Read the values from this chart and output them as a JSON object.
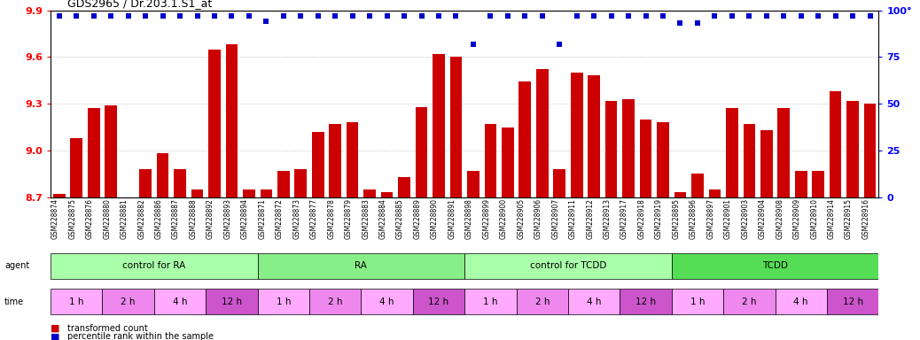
{
  "title": "GDS2965 / Dr.203.1.S1_at",
  "samples": [
    "GSM228874",
    "GSM228875",
    "GSM228876",
    "GSM228880",
    "GSM228881",
    "GSM228882",
    "GSM228886",
    "GSM228887",
    "GSM228888",
    "GSM228892",
    "GSM228893",
    "GSM228894",
    "GSM228871",
    "GSM228872",
    "GSM228873",
    "GSM228877",
    "GSM228878",
    "GSM228879",
    "GSM228883",
    "GSM228884",
    "GSM228885",
    "GSM228889",
    "GSM228890",
    "GSM228891",
    "GSM228898",
    "GSM228899",
    "GSM228900",
    "GSM228905",
    "GSM228906",
    "GSM228907",
    "GSM228911",
    "GSM228912",
    "GSM228913",
    "GSM228917",
    "GSM228918",
    "GSM228919",
    "GSM228895",
    "GSM228896",
    "GSM228897",
    "GSM228901",
    "GSM228903",
    "GSM228904",
    "GSM228908",
    "GSM228909",
    "GSM228910",
    "GSM228914",
    "GSM228915",
    "GSM228916"
  ],
  "bar_values": [
    8.72,
    9.08,
    9.27,
    9.29,
    8.7,
    8.88,
    8.98,
    8.88,
    8.75,
    9.65,
    9.68,
    8.75,
    8.75,
    8.87,
    8.88,
    9.12,
    9.17,
    9.18,
    8.75,
    8.73,
    8.83,
    9.28,
    9.62,
    9.6,
    8.87,
    9.17,
    9.15,
    9.44,
    9.52,
    8.88,
    9.5,
    9.48,
    9.32,
    9.33,
    9.2,
    9.18,
    8.73,
    8.85,
    8.75,
    9.27,
    9.17,
    9.13,
    9.27,
    8.87,
    8.87,
    9.38,
    9.32,
    9.3
  ],
  "percentile_values": [
    97,
    97,
    97,
    97,
    97,
    97,
    97,
    97,
    97,
    97,
    97,
    97,
    94,
    97,
    97,
    97,
    97,
    97,
    97,
    97,
    97,
    97,
    97,
    97,
    82,
    97,
    97,
    97,
    97,
    82,
    97,
    97,
    97,
    97,
    97,
    97,
    93,
    93,
    97,
    97,
    97,
    97,
    97,
    97,
    97,
    97,
    97,
    97
  ],
  "ylim_left": [
    8.7,
    9.9
  ],
  "yticks_left": [
    8.7,
    9.0,
    9.3,
    9.6,
    9.9
  ],
  "ylim_right": [
    0,
    100
  ],
  "yticks_right": [
    0,
    25,
    50,
    75,
    100
  ],
  "bar_color": "#cc0000",
  "dot_color": "#0000cc",
  "agents": [
    {
      "label": "control for RA",
      "start": 0,
      "end": 12,
      "color": "#aaffaa"
    },
    {
      "label": "RA",
      "start": 12,
      "end": 24,
      "color": "#88ee88"
    },
    {
      "label": "control for TCDD",
      "start": 24,
      "end": 36,
      "color": "#aaffaa"
    },
    {
      "label": "TCDD",
      "start": 36,
      "end": 48,
      "color": "#55dd55"
    }
  ],
  "time_blocks": [
    {
      "label": "1 h",
      "start": 0,
      "end": 3,
      "color": "#ffaaff"
    },
    {
      "label": "2 h",
      "start": 3,
      "end": 6,
      "color": "#ee88ee"
    },
    {
      "label": "4 h",
      "start": 6,
      "end": 9,
      "color": "#ffaaff"
    },
    {
      "label": "12 h",
      "start": 9,
      "end": 12,
      "color": "#cc55cc"
    },
    {
      "label": "1 h",
      "start": 12,
      "end": 15,
      "color": "#ffaaff"
    },
    {
      "label": "2 h",
      "start": 15,
      "end": 18,
      "color": "#ee88ee"
    },
    {
      "label": "4 h",
      "start": 18,
      "end": 21,
      "color": "#ffaaff"
    },
    {
      "label": "12 h",
      "start": 21,
      "end": 24,
      "color": "#cc55cc"
    },
    {
      "label": "1 h",
      "start": 24,
      "end": 27,
      "color": "#ffaaff"
    },
    {
      "label": "2 h",
      "start": 27,
      "end": 30,
      "color": "#ee88ee"
    },
    {
      "label": "4 h",
      "start": 30,
      "end": 33,
      "color": "#ffaaff"
    },
    {
      "label": "12 h",
      "start": 33,
      "end": 36,
      "color": "#cc55cc"
    },
    {
      "label": "1 h",
      "start": 36,
      "end": 39,
      "color": "#ffaaff"
    },
    {
      "label": "2 h",
      "start": 39,
      "end": 42,
      "color": "#ee88ee"
    },
    {
      "label": "4 h",
      "start": 42,
      "end": 45,
      "color": "#ffaaff"
    },
    {
      "label": "12 h",
      "start": 45,
      "end": 48,
      "color": "#cc55cc"
    }
  ],
  "legend_items": [
    {
      "label": "transformed count",
      "color": "#cc0000",
      "marker": "s"
    },
    {
      "label": "percentile rank within the sample",
      "color": "#0000cc",
      "marker": "s"
    }
  ],
  "background_color": "#ffffff",
  "grid_color": "#aaaaaa"
}
